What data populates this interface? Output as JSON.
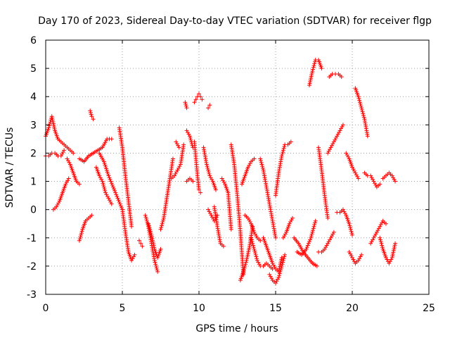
{
  "chart_data": {
    "type": "scatter",
    "title": "Day 170 of 2023, Sidereal Day-to-day VTEC variation (SDTVAR) for receiver flgp",
    "xlabel": "GPS time / hours",
    "ylabel": "SDTVAR / TECUs",
    "xlim": [
      0,
      25
    ],
    "ylim": [
      -3,
      6
    ],
    "xticks": [
      0,
      5,
      10,
      15,
      20,
      25
    ],
    "yticks": [
      -3,
      -2,
      -1,
      0,
      1,
      2,
      3,
      4,
      5,
      6
    ],
    "grid": true,
    "marker": "+",
    "color": "#ff0000",
    "series": [
      {
        "name": "arc-01",
        "x": [
          0.0,
          0.2,
          0.4,
          0.6,
          0.8,
          1.0,
          1.2,
          1.4,
          1.6,
          1.8
        ],
        "y": [
          2.6,
          2.9,
          3.3,
          2.8,
          2.5,
          2.4,
          2.3,
          2.2,
          2.1,
          2.0
        ]
      },
      {
        "name": "arc-02",
        "x": [
          0.0,
          0.2,
          0.4,
          0.6,
          0.8,
          1.0,
          1.2
        ],
        "y": [
          1.9,
          1.9,
          2.0,
          2.0,
          1.9,
          1.9,
          2.1
        ]
      },
      {
        "name": "arc-03",
        "x": [
          0.5,
          0.7,
          0.9,
          1.1,
          1.3,
          1.5
        ],
        "y": [
          0.0,
          0.1,
          0.3,
          0.6,
          0.9,
          1.1
        ]
      },
      {
        "name": "arc-04",
        "x": [
          1.4,
          1.6,
          1.8,
          2.0,
          2.2
        ],
        "y": [
          1.8,
          1.6,
          1.3,
          1.0,
          0.9
        ]
      },
      {
        "name": "arc-05",
        "x": [
          2.2,
          2.4,
          2.6,
          2.8,
          3.0
        ],
        "y": [
          -1.1,
          -0.7,
          -0.4,
          -0.3,
          -0.2
        ]
      },
      {
        "name": "arc-06",
        "x": [
          2.2,
          2.5,
          2.8,
          3.1,
          3.4,
          3.7,
          4.0,
          4.3
        ],
        "y": [
          1.8,
          1.7,
          1.9,
          2.0,
          2.1,
          2.2,
          2.5,
          2.5
        ]
      },
      {
        "name": "arc-07",
        "x": [
          2.9,
          3.0,
          3.1
        ],
        "y": [
          3.5,
          3.3,
          3.2
        ]
      },
      {
        "name": "arc-08",
        "x": [
          3.5,
          3.8,
          4.1,
          4.4,
          4.7,
          5.0
        ],
        "y": [
          2.0,
          1.7,
          1.2,
          0.8,
          0.4,
          0.0
        ]
      },
      {
        "name": "arc-09",
        "x": [
          3.3,
          3.5,
          3.7,
          3.9,
          4.1,
          4.3
        ],
        "y": [
          1.5,
          1.2,
          1.0,
          0.6,
          0.4,
          0.2
        ]
      },
      {
        "name": "arc-10",
        "x": [
          4.8,
          5.0,
          5.2,
          5.4,
          5.6
        ],
        "y": [
          2.9,
          2.2,
          1.2,
          0.3,
          -0.6
        ]
      },
      {
        "name": "arc-11",
        "x": [
          5.0,
          5.2,
          5.4,
          5.6,
          5.8
        ],
        "y": [
          0.0,
          -0.8,
          -1.5,
          -1.8,
          -1.6
        ]
      },
      {
        "name": "arc-12",
        "x": [
          6.1,
          6.2,
          6.3
        ],
        "y": [
          -1.1,
          -1.2,
          -1.3
        ]
      },
      {
        "name": "arc-13",
        "x": [
          6.5,
          6.7,
          6.9,
          7.1,
          7.3
        ],
        "y": [
          -0.2,
          -0.6,
          -1.2,
          -1.8,
          -2.2
        ]
      },
      {
        "name": "arc-14",
        "x": [
          6.7,
          6.9,
          7.1,
          7.3,
          7.5
        ],
        "y": [
          -0.5,
          -0.9,
          -1.4,
          -1.7,
          -1.4
        ]
      },
      {
        "name": "arc-15",
        "x": [
          7.5,
          7.7,
          7.9,
          8.1,
          8.3
        ],
        "y": [
          -0.7,
          -0.3,
          0.4,
          1.1,
          1.8
        ]
      },
      {
        "name": "arc-16",
        "x": [
          8.2,
          8.4,
          8.6,
          8.8,
          9.0
        ],
        "y": [
          1.1,
          1.2,
          1.4,
          1.6,
          2.3
        ]
      },
      {
        "name": "arc-17",
        "x": [
          8.5,
          8.7
        ],
        "y": [
          2.4,
          2.2
        ]
      },
      {
        "name": "arc-18",
        "x": [
          9.1,
          9.2
        ],
        "y": [
          3.8,
          3.6
        ]
      },
      {
        "name": "arc-19",
        "x": [
          9.2,
          9.4,
          9.6
        ],
        "y": [
          2.8,
          2.6,
          2.2
        ]
      },
      {
        "name": "arc-20",
        "x": [
          9.2,
          9.4,
          9.6
        ],
        "y": [
          1.0,
          1.1,
          1.0
        ]
      },
      {
        "name": "arc-21",
        "x": [
          9.7,
          9.8,
          9.9,
          10.0,
          10.1
        ],
        "y": [
          2.4,
          1.8,
          1.2,
          0.7,
          0.6
        ]
      },
      {
        "name": "arc-22",
        "x": [
          9.7,
          9.8,
          9.9,
          10.0,
          10.1,
          10.2
        ],
        "y": [
          3.8,
          3.9,
          4.0,
          4.1,
          4.0,
          3.9
        ]
      },
      {
        "name": "arc-23",
        "x": [
          10.6,
          10.7
        ],
        "y": [
          3.6,
          3.7
        ]
      },
      {
        "name": "arc-24",
        "x": [
          10.3,
          10.5,
          10.7,
          10.9,
          11.1
        ],
        "y": [
          2.2,
          1.6,
          1.2,
          1.0,
          0.7
        ]
      },
      {
        "name": "arc-25",
        "x": [
          10.6,
          10.8,
          11.0,
          11.2
        ],
        "y": [
          0.0,
          -0.2,
          -0.4,
          -0.2
        ]
      },
      {
        "name": "arc-26",
        "x": [
          11.0,
          11.2,
          11.4,
          11.6
        ],
        "y": [
          0.1,
          -0.6,
          -1.2,
          -1.3
        ]
      },
      {
        "name": "arc-27",
        "x": [
          11.5,
          11.7,
          11.9,
          12.1
        ],
        "y": [
          1.1,
          0.9,
          0.6,
          -0.7
        ]
      },
      {
        "name": "arc-28",
        "x": [
          12.1,
          12.3,
          12.5,
          12.7,
          12.9
        ],
        "y": [
          2.3,
          1.6,
          0.5,
          -0.8,
          -2.3
        ]
      },
      {
        "name": "arc-29",
        "x": [
          12.7,
          12.9,
          13.1,
          13.3,
          13.5
        ],
        "y": [
          -2.5,
          -2.2,
          -1.8,
          -1.3,
          -0.6
        ]
      },
      {
        "name": "arc-30",
        "x": [
          12.8,
          13.0,
          13.2,
          13.4,
          13.6
        ],
        "y": [
          0.9,
          1.2,
          1.5,
          1.7,
          1.8
        ]
      },
      {
        "name": "arc-31",
        "x": [
          13.4,
          13.6,
          13.8,
          14.0,
          14.2,
          14.4,
          14.6,
          14.8
        ],
        "y": [
          -1.0,
          -1.4,
          -1.8,
          -2.0,
          -2.0,
          -1.9,
          -2.0,
          -2.1
        ]
      },
      {
        "name": "arc-32",
        "x": [
          13.0,
          13.2,
          13.4,
          13.6,
          13.8,
          14.0
        ],
        "y": [
          -0.2,
          -0.3,
          -0.5,
          -0.8,
          -1.0,
          -1.1
        ]
      },
      {
        "name": "arc-33",
        "x": [
          14.0,
          14.2,
          14.4,
          14.6,
          14.8,
          15.0
        ],
        "y": [
          1.8,
          1.4,
          0.8,
          0.2,
          -0.4,
          -1.0
        ]
      },
      {
        "name": "arc-34",
        "x": [
          14.6,
          14.8,
          15.0,
          15.2,
          15.4,
          15.6
        ],
        "y": [
          -2.3,
          -2.5,
          -2.6,
          -2.4,
          -2.0,
          -1.6
        ]
      },
      {
        "name": "arc-35",
        "x": [
          14.2,
          14.4,
          14.6,
          14.8,
          15.0,
          15.2,
          15.4
        ],
        "y": [
          -1.0,
          -1.3,
          -1.6,
          -1.9,
          -2.1,
          -2.2,
          -1.7
        ]
      },
      {
        "name": "arc-36",
        "x": [
          15.0,
          15.2,
          15.4,
          15.6,
          15.8,
          16.0
        ],
        "y": [
          0.5,
          1.3,
          1.9,
          2.3,
          2.3,
          2.4
        ]
      },
      {
        "name": "arc-37",
        "x": [
          15.5,
          15.7,
          15.9,
          16.1
        ],
        "y": [
          -1.0,
          -0.8,
          -0.5,
          -0.3
        ]
      },
      {
        "name": "arc-38",
        "x": [
          16.2,
          16.5,
          16.8,
          17.1,
          17.4,
          17.7
        ],
        "y": [
          -1.0,
          -1.2,
          -1.5,
          -1.7,
          -1.9,
          -2.0
        ]
      },
      {
        "name": "arc-39",
        "x": [
          16.4,
          16.7,
          17.0,
          17.3,
          17.6
        ],
        "y": [
          -1.5,
          -1.6,
          -1.4,
          -1.0,
          -0.4
        ]
      },
      {
        "name": "arc-40",
        "x": [
          17.2,
          17.4,
          17.6,
          17.8,
          18.0
        ],
        "y": [
          4.4,
          4.9,
          5.3,
          5.3,
          5.0
        ]
      },
      {
        "name": "arc-41",
        "x": [
          17.8,
          18.0,
          18.2,
          18.4
        ],
        "y": [
          2.2,
          1.4,
          0.5,
          -0.3
        ]
      },
      {
        "name": "arc-42",
        "x": [
          17.8,
          18.0,
          18.2,
          18.4,
          18.6,
          18.8
        ],
        "y": [
          -1.5,
          -1.5,
          -1.4,
          -1.2,
          -1.0,
          -0.8
        ]
      },
      {
        "name": "arc-43",
        "x": [
          18.5,
          18.7,
          18.9,
          19.1,
          19.3
        ],
        "y": [
          4.7,
          4.8,
          4.8,
          4.8,
          4.7
        ]
      },
      {
        "name": "arc-44",
        "x": [
          18.4,
          18.6,
          18.8,
          19.0,
          19.2,
          19.4
        ],
        "y": [
          2.0,
          2.2,
          2.4,
          2.6,
          2.8,
          3.0
        ]
      },
      {
        "name": "arc-45",
        "x": [
          19.0,
          19.2,
          19.4,
          19.6,
          19.8,
          20.0
        ],
        "y": [
          -0.1,
          -0.1,
          0.0,
          -0.2,
          -0.5,
          -0.9
        ]
      },
      {
        "name": "arc-46",
        "x": [
          19.6,
          19.8,
          20.0,
          20.2,
          20.4
        ],
        "y": [
          2.0,
          1.8,
          1.5,
          1.3,
          1.1
        ]
      },
      {
        "name": "arc-47",
        "x": [
          20.2,
          20.4,
          20.6,
          20.8,
          21.0
        ],
        "y": [
          4.3,
          4.0,
          3.6,
          3.2,
          2.6
        ]
      },
      {
        "name": "arc-48",
        "x": [
          19.8,
          20.0,
          20.2,
          20.4,
          20.6
        ],
        "y": [
          -1.5,
          -1.7,
          -1.9,
          -1.8,
          -1.6
        ]
      },
      {
        "name": "arc-49",
        "x": [
          20.8,
          21.0,
          21.2,
          21.4,
          21.6,
          21.8
        ],
        "y": [
          1.3,
          1.2,
          1.2,
          1.0,
          0.8,
          0.9
        ]
      },
      {
        "name": "arc-50",
        "x": [
          21.2,
          21.4,
          21.6,
          21.8,
          22.0,
          22.2
        ],
        "y": [
          -1.2,
          -1.0,
          -0.8,
          -0.6,
          -0.4,
          -0.5
        ]
      },
      {
        "name": "arc-51",
        "x": [
          21.8,
          22.0,
          22.2,
          22.4,
          22.6,
          22.8
        ],
        "y": [
          -1.0,
          -1.4,
          -1.7,
          -1.9,
          -1.7,
          -1.2
        ]
      },
      {
        "name": "arc-52",
        "x": [
          22.0,
          22.2,
          22.4,
          22.6,
          22.8
        ],
        "y": [
          1.1,
          1.2,
          1.3,
          1.2,
          1.0
        ]
      }
    ]
  }
}
